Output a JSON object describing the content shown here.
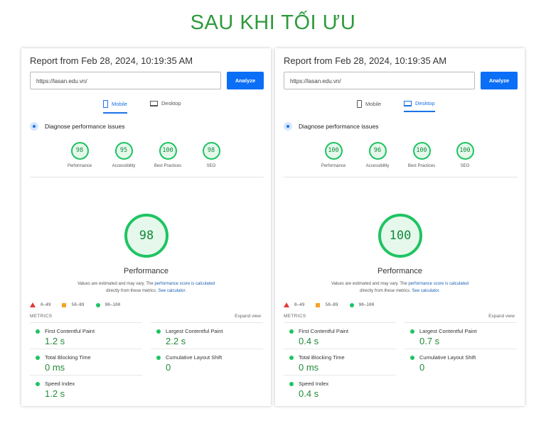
{
  "title": "SAU KHI TỐI ƯU",
  "panels": [
    {
      "report": "Report from Feb 28, 2024, 10:19:35 AM",
      "url": "https://lasan.edu.vn/",
      "analyze": "Analyze",
      "tabs": [
        {
          "label": "Mobile",
          "active": true
        },
        {
          "label": "Desktop",
          "active": false
        }
      ],
      "diagnose": "Diagnose performance issues",
      "categories": [
        {
          "score": "98",
          "label": "Performance"
        },
        {
          "score": "95",
          "label": "Accessibility"
        },
        {
          "score": "100",
          "label": "Best Practices"
        },
        {
          "score": "98",
          "label": "SEO"
        }
      ],
      "score": "98",
      "score_label": "Performance",
      "note1": "Values are estimated and may vary. The ",
      "note_link1": "performance score is calculated",
      "note2": "directly from these metrics. ",
      "note_link2": "See calculator.",
      "legend": [
        "0–49",
        "50–89",
        "90–100"
      ],
      "metrics_label": "METRICS",
      "expand": "Expand view",
      "metrics": [
        {
          "name": "First Contentful Paint",
          "value": "1.2 s"
        },
        {
          "name": "Largest Contentful Paint",
          "value": "2.2 s"
        },
        {
          "name": "Total Blocking Time",
          "value": "0 ms"
        },
        {
          "name": "Cumulative Layout Shift",
          "value": "0"
        },
        {
          "name": "Speed Index",
          "value": "1.2 s"
        }
      ]
    },
    {
      "report": "Report from Feb 28, 2024, 10:19:35 AM",
      "url": "https://lasan.edu.vn/",
      "analyze": "Analyze",
      "tabs": [
        {
          "label": "Mobile",
          "active": false
        },
        {
          "label": "Desktop",
          "active": true
        }
      ],
      "diagnose": "Diagnose performance issues",
      "categories": [
        {
          "score": "100",
          "label": "Performance"
        },
        {
          "score": "96",
          "label": "Accessibility"
        },
        {
          "score": "100",
          "label": "Best Practices"
        },
        {
          "score": "100",
          "label": "SEO"
        }
      ],
      "score": "100",
      "score_label": "Performance",
      "note1": "Values are estimated and may vary. The ",
      "note_link1": "performance score is calculated",
      "note2": "directly from these metrics. ",
      "note_link2": "See calculator.",
      "legend": [
        "0–49",
        "50–89",
        "90–100"
      ],
      "metrics_label": "METRICS",
      "expand": "Expand view",
      "metrics": [
        {
          "name": "First Contentful Paint",
          "value": "0.4 s"
        },
        {
          "name": "Largest Contentful Paint",
          "value": "0.7 s"
        },
        {
          "name": "Total Blocking Time",
          "value": "0 ms"
        },
        {
          "name": "Cumulative Layout Shift",
          "value": "0"
        },
        {
          "name": "Speed Index",
          "value": "0.4 s"
        }
      ]
    }
  ],
  "colors": {
    "title": "#2e9a3c",
    "pass": "#1ec462",
    "average": "#f7a326",
    "fail": "#e53935",
    "accent": "#0b6ef6"
  }
}
